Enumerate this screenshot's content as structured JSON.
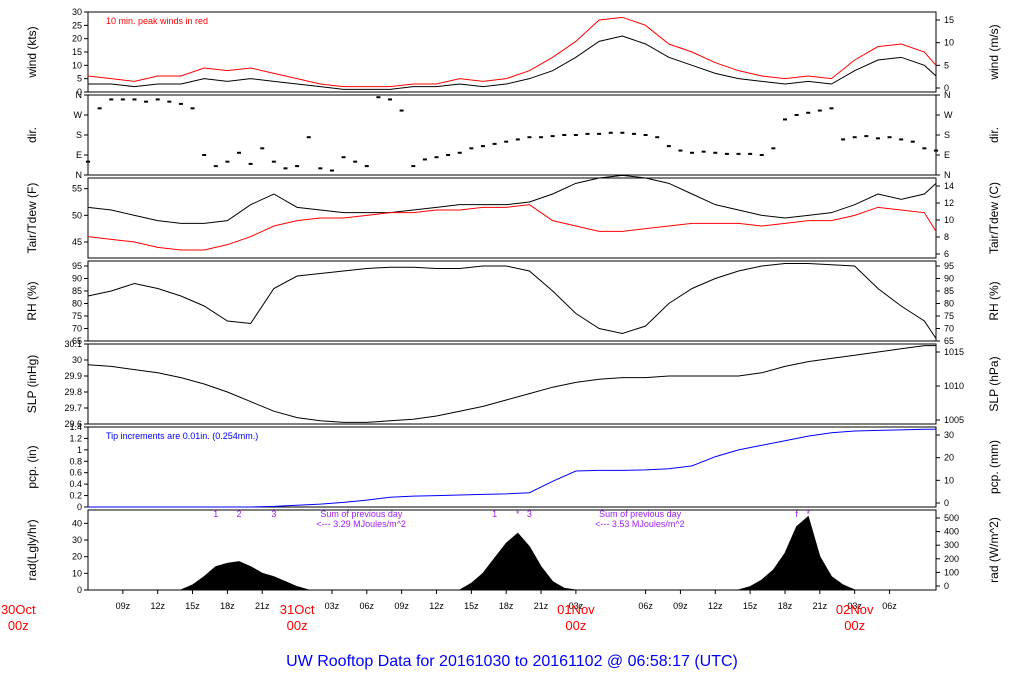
{
  "title": "UW Rooftop Data for 20161030  to  20161102 @ 06:58:17  (UTC)",
  "time_axis": {
    "hour_ticks": [
      "09z",
      "12z",
      "15z",
      "18z",
      "21z",
      "03z",
      "06z",
      "09z",
      "12z",
      "15z",
      "18z",
      "21z",
      "03z",
      "06z",
      "09z",
      "12z",
      "15z",
      "18z",
      "21z",
      "03z",
      "06z"
    ],
    "days": [
      {
        "label": "30Oct",
        "sub": "00z"
      },
      {
        "label": "31Oct",
        "sub": "00z"
      },
      {
        "label": "01Nov",
        "sub": "00z"
      },
      {
        "label": "02Nov",
        "sub": "00z"
      }
    ]
  },
  "colors": {
    "black": "#000000",
    "red": "#ff0000",
    "blue": "#0000ff",
    "purple": "#a020f0",
    "day_label": "#ff0000",
    "title": "#0000ff"
  },
  "chart_data": [
    {
      "type": "line",
      "panel": "wind",
      "ylabel": "wind (kts)",
      "ylabel_right": "wind (m/s)",
      "ylim": [
        0,
        30
      ],
      "yticks": [
        0,
        5,
        10,
        15,
        20,
        25,
        30
      ],
      "yticks_right": [
        0,
        5,
        10,
        15
      ],
      "annotation": "10 min. peak winds in red",
      "series": [
        {
          "color": "#000000",
          "x": [
            6,
            8,
            10,
            12,
            14,
            16,
            18,
            20,
            22,
            24,
            26,
            28,
            30,
            32,
            34,
            36,
            38,
            40,
            42,
            44,
            46,
            48,
            50,
            52,
            54,
            56,
            58,
            60,
            62,
            64,
            66,
            68,
            70,
            72,
            74,
            76,
            78,
            79
          ],
          "y": [
            3,
            3,
            2,
            3,
            3,
            5,
            4,
            5,
            4,
            3,
            2,
            1,
            1,
            1,
            2,
            2,
            3,
            2,
            3,
            5,
            8,
            13,
            19,
            21,
            18,
            13,
            10,
            7,
            5,
            4,
            3,
            4,
            3,
            8,
            12,
            13,
            10,
            6
          ]
        },
        {
          "color": "#ff0000",
          "x": [
            6,
            8,
            10,
            12,
            14,
            16,
            18,
            20,
            22,
            24,
            26,
            28,
            30,
            32,
            34,
            36,
            38,
            40,
            42,
            44,
            46,
            48,
            50,
            52,
            54,
            56,
            58,
            60,
            62,
            64,
            66,
            68,
            70,
            72,
            74,
            76,
            78,
            79
          ],
          "y": [
            6,
            5,
            4,
            6,
            6,
            9,
            8,
            9,
            7,
            5,
            3,
            2,
            2,
            2,
            3,
            3,
            5,
            4,
            5,
            8,
            13,
            19,
            27,
            28,
            25,
            18,
            15,
            11,
            8,
            6,
            5,
            6,
            5,
            12,
            17,
            18,
            15,
            10
          ]
        }
      ]
    },
    {
      "type": "scatter",
      "panel": "direction",
      "ylabel": "dir.",
      "ylabel_right": "dir.",
      "ylim": [
        0,
        360
      ],
      "ytick_labels": [
        "N",
        "E",
        "S",
        "W",
        "N"
      ],
      "ytick_values": [
        0,
        90,
        180,
        270,
        360
      ],
      "series": [
        {
          "color": "#000000",
          "x": [
            6,
            7,
            8,
            9,
            10,
            11,
            12,
            13,
            14,
            15,
            16,
            17,
            18,
            19,
            20,
            21,
            22,
            23,
            24,
            25,
            26,
            27,
            28,
            29,
            30,
            31,
            32,
            33,
            34,
            35,
            36,
            37,
            38,
            39,
            40,
            41,
            42,
            43,
            44,
            45,
            46,
            47,
            48,
            49,
            50,
            51,
            52,
            53,
            54,
            55,
            56,
            57,
            58,
            59,
            60,
            61,
            62,
            63,
            64,
            65,
            66,
            67,
            68,
            69,
            70,
            71,
            72,
            73,
            74,
            75,
            76,
            77,
            78,
            79
          ],
          "y": [
            60,
            300,
            340,
            340,
            340,
            330,
            340,
            330,
            320,
            300,
            90,
            40,
            60,
            100,
            50,
            120,
            60,
            30,
            40,
            170,
            30,
            20,
            80,
            60,
            40,
            350,
            340,
            290,
            40,
            70,
            80,
            90,
            100,
            120,
            130,
            140,
            150,
            160,
            170,
            170,
            175,
            180,
            180,
            185,
            185,
            190,
            190,
            185,
            180,
            170,
            130,
            110,
            100,
            105,
            100,
            95,
            95,
            95,
            90,
            120,
            250,
            270,
            280,
            290,
            300,
            160,
            170,
            175,
            165,
            170,
            160,
            150,
            120,
            110
          ]
        }
      ]
    },
    {
      "type": "line",
      "panel": "temperature",
      "ylabel": "Tair/Tdew (F)",
      "ylabel_right": "Tair/Tdew (C)",
      "ylim": [
        42,
        57
      ],
      "yticks": [
        45,
        50,
        55
      ],
      "yticks_right": [
        6,
        8,
        10,
        12,
        14
      ],
      "series": [
        {
          "color": "#000000",
          "x": [
            6,
            8,
            10,
            12,
            14,
            16,
            18,
            20,
            22,
            24,
            26,
            28,
            30,
            32,
            34,
            36,
            38,
            40,
            42,
            44,
            46,
            48,
            50,
            52,
            54,
            56,
            58,
            60,
            62,
            64,
            66,
            68,
            70,
            72,
            74,
            76,
            78,
            79
          ],
          "y": [
            51.5,
            51,
            50,
            49,
            48.5,
            48.5,
            49,
            52,
            54,
            51.5,
            51,
            50.5,
            50.5,
            50.5,
            51,
            51.5,
            52,
            52,
            52,
            52.5,
            54,
            56,
            57,
            57.5,
            57,
            56,
            54,
            52,
            51,
            50,
            49.5,
            50,
            50.5,
            52,
            54,
            53,
            54,
            56
          ]
        },
        {
          "color": "#ff0000",
          "x": [
            6,
            8,
            10,
            12,
            14,
            16,
            18,
            20,
            22,
            24,
            26,
            28,
            30,
            32,
            34,
            36,
            38,
            40,
            42,
            44,
            46,
            48,
            50,
            52,
            54,
            56,
            58,
            60,
            62,
            64,
            66,
            68,
            70,
            72,
            74,
            76,
            78,
            79
          ],
          "y": [
            46,
            45.5,
            45,
            44,
            43.5,
            43.5,
            44.5,
            46,
            48,
            49,
            49.5,
            49.5,
            50,
            50.5,
            50.5,
            51,
            51,
            51.5,
            51.5,
            52,
            49,
            48,
            47,
            47,
            47.5,
            48,
            48.5,
            48.5,
            48.5,
            48,
            48.5,
            49,
            49,
            50,
            51.5,
            51,
            50.5,
            47
          ]
        }
      ]
    },
    {
      "type": "line",
      "panel": "relative-humidity",
      "ylabel": "RH (%)",
      "ylabel_right": "RH (%)",
      "ylim": [
        65,
        97
      ],
      "yticks": [
        65,
        70,
        75,
        80,
        85,
        90,
        95
      ],
      "series": [
        {
          "color": "#000000",
          "x": [
            6,
            8,
            10,
            12,
            14,
            16,
            18,
            20,
            22,
            24,
            26,
            28,
            30,
            32,
            34,
            36,
            38,
            40,
            42,
            44,
            46,
            48,
            50,
            52,
            54,
            56,
            58,
            60,
            62,
            64,
            66,
            68,
            70,
            72,
            74,
            76,
            78,
            79
          ],
          "y": [
            83,
            85,
            88,
            86,
            83,
            79,
            73,
            72,
            86,
            91,
            92,
            93,
            94,
            94.5,
            94.5,
            94,
            94,
            95,
            95,
            93,
            85,
            76,
            70,
            68,
            71,
            80,
            86,
            90,
            93,
            95,
            96,
            96,
            95.5,
            95,
            86,
            79,
            73,
            66
          ]
        }
      ]
    },
    {
      "type": "line",
      "panel": "sea-level-pressure",
      "ylabel": "SLP (inHg)",
      "ylabel_right": "SLP (hPa)",
      "ylim": [
        29.6,
        30.1
      ],
      "yticks": [
        29.6,
        29.7,
        29.8,
        29.9,
        30.0,
        30.1
      ],
      "yticks_right": [
        1005,
        1010,
        1015
      ],
      "series": [
        {
          "color": "#000000",
          "x": [
            6,
            8,
            10,
            12,
            14,
            16,
            18,
            20,
            22,
            24,
            26,
            28,
            30,
            32,
            34,
            36,
            38,
            40,
            42,
            44,
            46,
            48,
            50,
            52,
            54,
            56,
            58,
            60,
            62,
            64,
            66,
            68,
            70,
            72,
            74,
            76,
            78,
            79
          ],
          "y": [
            29.97,
            29.96,
            29.94,
            29.92,
            29.89,
            29.85,
            29.8,
            29.74,
            29.68,
            29.64,
            29.62,
            29.61,
            29.61,
            29.62,
            29.63,
            29.65,
            29.68,
            29.71,
            29.75,
            29.79,
            29.83,
            29.86,
            29.88,
            29.89,
            29.89,
            29.9,
            29.9,
            29.9,
            29.9,
            29.92,
            29.96,
            29.99,
            30.01,
            30.03,
            30.05,
            30.07,
            30.09,
            30.09
          ]
        }
      ]
    },
    {
      "type": "line",
      "panel": "precipitation",
      "ylabel": "pcp. (in)",
      "ylabel_right": "pcp. (mm)",
      "ylim": [
        0,
        1.4
      ],
      "yticks": [
        0.0,
        0.2,
        0.4,
        0.6,
        0.8,
        1.0,
        1.2,
        1.4
      ],
      "yticks_right": [
        0,
        10,
        20,
        30
      ],
      "annotation": "Tip increments are 0.01in. (0.254mm.)",
      "series": [
        {
          "color": "#0000ff",
          "x": [
            6,
            8,
            10,
            12,
            14,
            16,
            18,
            20,
            22,
            24,
            26,
            28,
            30,
            32,
            34,
            36,
            38,
            40,
            42,
            44,
            46,
            48,
            50,
            52,
            54,
            56,
            58,
            60,
            62,
            64,
            66,
            68,
            70,
            72,
            74,
            76,
            78,
            79
          ],
          "y": [
            0,
            0,
            0,
            0,
            0,
            0,
            0,
            0,
            0.01,
            0.03,
            0.05,
            0.08,
            0.12,
            0.17,
            0.19,
            0.2,
            0.21,
            0.22,
            0.23,
            0.25,
            0.45,
            0.63,
            0.64,
            0.64,
            0.65,
            0.67,
            0.72,
            0.88,
            1.0,
            1.08,
            1.16,
            1.24,
            1.3,
            1.33,
            1.34,
            1.35,
            1.36,
            1.36
          ]
        }
      ]
    },
    {
      "type": "area",
      "panel": "radiation",
      "ylabel": "rad(Lgly/hr)",
      "ylabel_right": "rad (W/m^2)",
      "ylim": [
        0,
        48
      ],
      "yticks": [
        0,
        10,
        20,
        30,
        40
      ],
      "yticks_right": [
        0,
        100,
        200,
        300,
        400,
        500
      ],
      "annotations": [
        {
          "text": "Sum of previous day",
          "day": 1
        },
        {
          "text": "<--- 3.29 MJoules/m^2",
          "day": 1
        },
        {
          "text": "Sum of previous day",
          "day": 2
        },
        {
          "text": "<--- 3.53 MJoules/m^2",
          "day": 2
        }
      ],
      "markers": [
        "1",
        "2",
        "3",
        "1",
        "*",
        "3",
        "f",
        "*"
      ],
      "series": [
        {
          "color": "#000000",
          "x": [
            14,
            15,
            16,
            17,
            18,
            19,
            20,
            21,
            22,
            23,
            24,
            25,
            38,
            39,
            40,
            41,
            42,
            43,
            44,
            45,
            46,
            47,
            48,
            62,
            63,
            64,
            65,
            66,
            67,
            68,
            69,
            70,
            71,
            72
          ],
          "y": [
            0,
            3,
            8,
            14,
            16,
            17,
            14,
            10,
            8,
            5,
            2,
            0,
            0,
            4,
            10,
            19,
            28,
            34,
            26,
            14,
            5,
            1,
            0,
            0,
            2,
            6,
            12,
            22,
            38,
            44,
            20,
            8,
            3,
            0
          ]
        }
      ]
    }
  ]
}
